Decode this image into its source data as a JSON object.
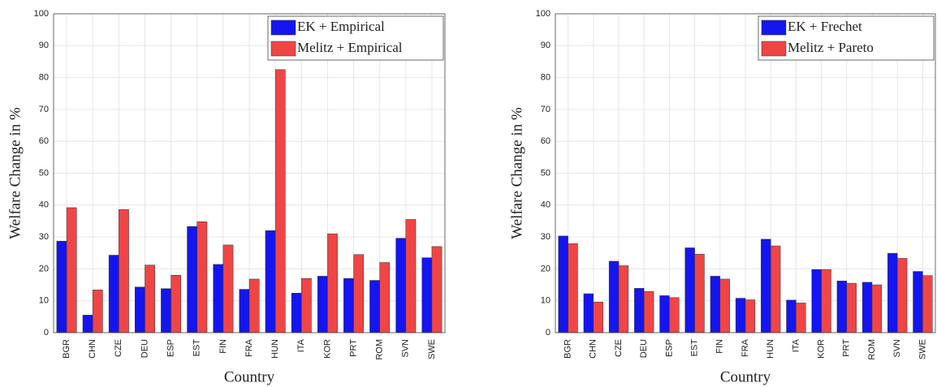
{
  "chart_data": [
    {
      "type": "bar",
      "xlabel": "Country",
      "ylabel": "Welfare Change in %",
      "categories": [
        "BGR",
        "CHN",
        "CZE",
        "DEU",
        "ESP",
        "EST",
        "FIN",
        "FRA",
        "HUN",
        "ITA",
        "KOR",
        "PRT",
        "ROM",
        "SVN",
        "SWE"
      ],
      "series": [
        {
          "name": "EK + Empirical",
          "color": "#1515f0",
          "values": [
            28.7,
            5.5,
            24.3,
            14.3,
            13.8,
            33.3,
            21.4,
            13.6,
            32,
            12.4,
            17.7,
            17,
            16.4,
            29.6,
            23.5
          ]
        },
        {
          "name": "Melitz + Empirical",
          "color": "#f04545",
          "values": [
            39.2,
            13.4,
            38.6,
            21.2,
            18,
            34.8,
            27.5,
            16.8,
            82.5,
            17,
            31,
            24.5,
            22,
            35.5,
            27
          ]
        }
      ],
      "ylim": [
        0,
        100
      ],
      "yticks": [
        0,
        10,
        20,
        30,
        40,
        50,
        60,
        70,
        80,
        90,
        100
      ],
      "grid": true,
      "legend": "upper right"
    },
    {
      "type": "bar",
      "xlabel": "Country",
      "ylabel": "Welfare Change in %",
      "categories": [
        "BGR",
        "CHN",
        "CZE",
        "DEU",
        "ESP",
        "EST",
        "FIN",
        "FRA",
        "HUN",
        "ITA",
        "KOR",
        "PRT",
        "ROM",
        "SVN",
        "SWE"
      ],
      "series": [
        {
          "name": "EK + Frechet",
          "color": "#1515f0",
          "values": [
            30.3,
            12.2,
            22.4,
            13.9,
            11.6,
            26.6,
            17.7,
            10.8,
            29.3,
            10.2,
            19.8,
            16.2,
            15.8,
            24.9,
            19.2
          ]
        },
        {
          "name": "Melitz + Pareto",
          "color": "#f04545",
          "values": [
            27.9,
            9.6,
            21,
            12.9,
            11,
            24.6,
            16.8,
            10.3,
            27.2,
            9.3,
            19.8,
            15.5,
            15,
            23.3,
            17.9
          ]
        }
      ],
      "ylim": [
        0,
        100
      ],
      "yticks": [
        0,
        10,
        20,
        30,
        40,
        50,
        60,
        70,
        80,
        90,
        100
      ],
      "grid": true,
      "legend": "upper right"
    }
  ]
}
